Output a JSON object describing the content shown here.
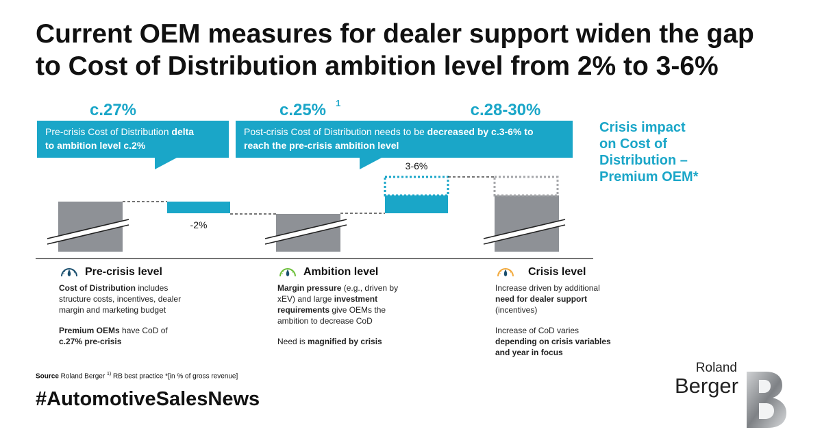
{
  "title": {
    "line1": "Current OEM measures for dealer support widen the gap",
    "line2": "to Cost of Distribution ambition level from 2% to 3-6%"
  },
  "side_label": {
    "line1": "Crisis impact",
    "line2": "on Cost of",
    "line3": "Distribution –",
    "line4": "Premium OEM*"
  },
  "callouts": {
    "left": {
      "pre": "Pre-crisis Cost of Distribution ",
      "bold1": "delta",
      "bold2": "to ambition level c.2%"
    },
    "right": {
      "pre": "Post-crisis Cost of Distribution needs to be ",
      "bold1": "decreased by c.3-6% to",
      "bold2": "reach the pre-crisis ambition level"
    }
  },
  "chart_data": {
    "type": "waterfall",
    "big_labels": [
      "c.27%",
      "c.25%",
      "c.28-30%"
    ],
    "footnote_mark": "1",
    "delta_labels": {
      "minus": "-2%",
      "range": "3-6%"
    },
    "steps": [
      {
        "name": "Pre-crisis level",
        "kind": "total",
        "value_label": "c.27%"
      },
      {
        "name": "delta",
        "kind": "decrease",
        "value_label": "-2%"
      },
      {
        "name": "Ambition level",
        "kind": "total",
        "value_label": "c.25%"
      },
      {
        "name": "crisis increase",
        "kind": "increase",
        "value_label": "3-6%"
      },
      {
        "name": "Crisis level",
        "kind": "total",
        "value_label": "c.28-30%"
      }
    ],
    "colors": {
      "total": "#8e9196",
      "delta": "#1aa6c8",
      "dotted": "#a4a6a9"
    }
  },
  "sections": {
    "pre_crisis": {
      "title": "Pre-crisis level",
      "p1": {
        "b1": "Cost of Distribution",
        "t1": " includes structure costs, incentives, dealer margin and marketing budget"
      },
      "p2": {
        "b1": "Premium OEMs",
        "t1": " have CoD of ",
        "b2": "c.27% pre-crisis"
      }
    },
    "ambition": {
      "title": "Ambition level",
      "p1": {
        "b1": "Margin pressure",
        "t1": " (e.g., driven by xEV) and large ",
        "b2": "investment requirements",
        "t2": " give OEMs the ambition to decrease CoD"
      },
      "p2": {
        "t1": "Need is ",
        "b1": "magnified by crisis"
      }
    },
    "crisis": {
      "title": "Crisis level",
      "p1": {
        "t1": "Increase driven by additional ",
        "b1": "need for dealer support",
        "t2": " (incentives)"
      },
      "p2": {
        "t1": "Increase of CoD varies ",
        "b1": "depending on crisis variables and year in focus"
      }
    }
  },
  "source": {
    "label": "Source",
    "text": " Roland Berger",
    "fn1": "1)",
    "fn1_text": " RB best practice  *[in % of gross revenue]"
  },
  "hashtag": "#AutomotiveSalesNews",
  "logo": {
    "line1": "Roland",
    "line2": "Berger"
  },
  "colors": {
    "accent": "#1aa6c8",
    "bar": "#8e9196",
    "text": "#111111"
  },
  "icons": {
    "gauge": "gauge-icon"
  }
}
